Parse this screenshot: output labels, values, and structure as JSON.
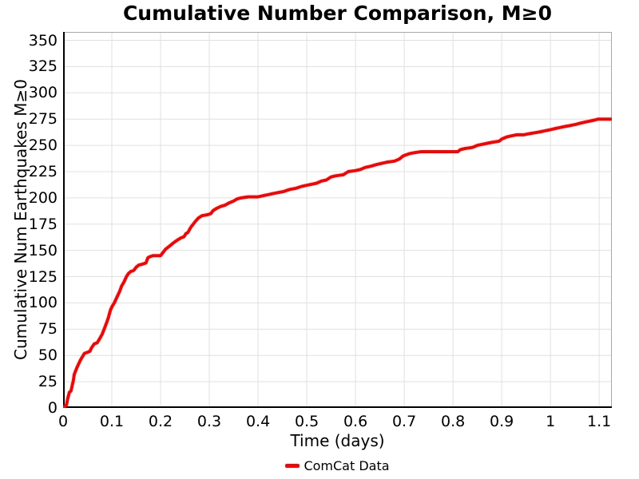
{
  "chart_data": {
    "type": "line",
    "title": "Cumulative Number Comparison, M≥0",
    "xlabel": "Time (days)",
    "ylabel": "Cumulative Num Earthquakes M≥0",
    "xlim": [
      0,
      1.126
    ],
    "ylim": [
      0,
      358
    ],
    "grid": true,
    "grid_color": "#e0e0e0",
    "spine_dark_color": "#000000",
    "spine_light_color": "#a8a8a8",
    "legend_position": "bottom-center",
    "x_tick_values": [
      0,
      0.1,
      0.2,
      0.3,
      0.4,
      0.5,
      0.6,
      0.7,
      0.8,
      0.9,
      1,
      1.1
    ],
    "x_tick_labels": [
      "0",
      "0.1",
      "0.2",
      "0.3",
      "0.4",
      "0.5",
      "0.6",
      "0.7",
      "0.8",
      "0.9",
      "1",
      "1.1"
    ],
    "y_tick_values": [
      0,
      25,
      50,
      75,
      100,
      125,
      150,
      175,
      200,
      225,
      250,
      275,
      300,
      325,
      350
    ],
    "y_tick_labels": [
      "0",
      "25",
      "50",
      "75",
      "100",
      "125",
      "150",
      "175",
      "200",
      "225",
      "250",
      "275",
      "300",
      "325",
      "350"
    ],
    "series": [
      {
        "name": "ComCat Data",
        "color": "#ff0000",
        "line_width": 4,
        "points": [
          [
            0,
            0
          ],
          [
            0.005,
            2
          ],
          [
            0.007,
            3
          ],
          [
            0.009,
            8
          ],
          [
            0.013,
            15
          ],
          [
            0.016,
            16
          ],
          [
            0.018,
            20
          ],
          [
            0.021,
            26
          ],
          [
            0.023,
            32
          ],
          [
            0.028,
            38
          ],
          [
            0.032,
            42
          ],
          [
            0.036,
            46
          ],
          [
            0.04,
            49
          ],
          [
            0.044,
            52
          ],
          [
            0.05,
            53
          ],
          [
            0.055,
            54
          ],
          [
            0.058,
            57
          ],
          [
            0.061,
            59
          ],
          [
            0.064,
            61
          ],
          [
            0.07,
            62
          ],
          [
            0.075,
            66
          ],
          [
            0.08,
            70
          ],
          [
            0.085,
            76
          ],
          [
            0.09,
            82
          ],
          [
            0.093,
            86
          ],
          [
            0.097,
            93
          ],
          [
            0.101,
            97
          ],
          [
            0.105,
            100
          ],
          [
            0.11,
            105
          ],
          [
            0.116,
            111
          ],
          [
            0.12,
            116
          ],
          [
            0.125,
            120
          ],
          [
            0.13,
            125
          ],
          [
            0.134,
            128
          ],
          [
            0.139,
            130
          ],
          [
            0.145,
            131
          ],
          [
            0.15,
            134
          ],
          [
            0.155,
            136
          ],
          [
            0.163,
            137
          ],
          [
            0.17,
            138
          ],
          [
            0.174,
            143
          ],
          [
            0.178,
            144
          ],
          [
            0.185,
            145
          ],
          [
            0.2,
            145
          ],
          [
            0.205,
            148
          ],
          [
            0.21,
            151
          ],
          [
            0.218,
            154
          ],
          [
            0.226,
            157
          ],
          [
            0.235,
            160
          ],
          [
            0.242,
            162
          ],
          [
            0.248,
            163
          ],
          [
            0.252,
            166
          ],
          [
            0.256,
            167
          ],
          [
            0.262,
            172
          ],
          [
            0.267,
            175
          ],
          [
            0.272,
            178
          ],
          [
            0.278,
            181
          ],
          [
            0.285,
            183
          ],
          [
            0.297,
            184
          ],
          [
            0.303,
            185
          ],
          [
            0.308,
            188
          ],
          [
            0.315,
            190
          ],
          [
            0.324,
            192
          ],
          [
            0.332,
            193
          ],
          [
            0.34,
            195
          ],
          [
            0.35,
            197
          ],
          [
            0.357,
            199
          ],
          [
            0.365,
            200
          ],
          [
            0.38,
            201
          ],
          [
            0.4,
            201
          ],
          [
            0.41,
            202
          ],
          [
            0.42,
            203
          ],
          [
            0.43,
            204
          ],
          [
            0.44,
            205
          ],
          [
            0.452,
            206
          ],
          [
            0.465,
            208
          ],
          [
            0.477,
            209
          ],
          [
            0.49,
            211
          ],
          [
            0.5,
            212
          ],
          [
            0.51,
            213
          ],
          [
            0.52,
            214
          ],
          [
            0.53,
            216
          ],
          [
            0.54,
            217
          ],
          [
            0.55,
            220
          ],
          [
            0.56,
            221
          ],
          [
            0.575,
            222
          ],
          [
            0.585,
            225
          ],
          [
            0.6,
            226
          ],
          [
            0.61,
            227
          ],
          [
            0.62,
            229
          ],
          [
            0.63,
            230
          ],
          [
            0.645,
            232
          ],
          [
            0.655,
            233
          ],
          [
            0.665,
            234
          ],
          [
            0.68,
            235
          ],
          [
            0.69,
            237
          ],
          [
            0.698,
            240
          ],
          [
            0.71,
            242
          ],
          [
            0.72,
            243
          ],
          [
            0.735,
            244
          ],
          [
            0.81,
            244
          ],
          [
            0.815,
            246
          ],
          [
            0.825,
            247
          ],
          [
            0.84,
            248
          ],
          [
            0.85,
            250
          ],
          [
            0.86,
            251
          ],
          [
            0.87,
            252
          ],
          [
            0.882,
            253
          ],
          [
            0.895,
            254
          ],
          [
            0.9,
            256
          ],
          [
            0.91,
            258
          ],
          [
            0.92,
            259
          ],
          [
            0.93,
            260
          ],
          [
            0.945,
            260
          ],
          [
            0.955,
            261
          ],
          [
            0.968,
            262
          ],
          [
            0.98,
            263
          ],
          [
            0.99,
            264
          ],
          [
            1.0,
            265
          ],
          [
            1.01,
            266
          ],
          [
            1.02,
            267
          ],
          [
            1.03,
            268
          ],
          [
            1.042,
            269
          ],
          [
            1.052,
            270
          ],
          [
            1.06,
            271
          ],
          [
            1.07,
            272
          ],
          [
            1.08,
            273
          ],
          [
            1.09,
            274
          ],
          [
            1.098,
            275
          ],
          [
            1.124,
            275
          ]
        ]
      }
    ]
  }
}
